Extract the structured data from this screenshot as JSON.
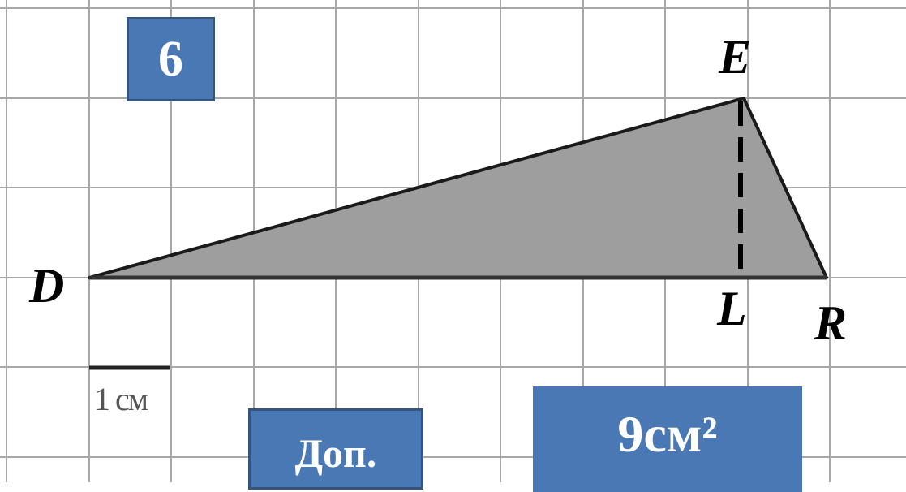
{
  "task_number": "6",
  "points": {
    "E": "E",
    "D": "D",
    "L": "L",
    "R": "R"
  },
  "scale_label": "1 см",
  "extra_button_label": "Доп.",
  "answer": "9см²",
  "colors": {
    "grid": "#a8a8a8",
    "triangle_fill": "#9e9e9e",
    "box_fill": "#4a78b5",
    "box_border": "#35557f"
  }
}
